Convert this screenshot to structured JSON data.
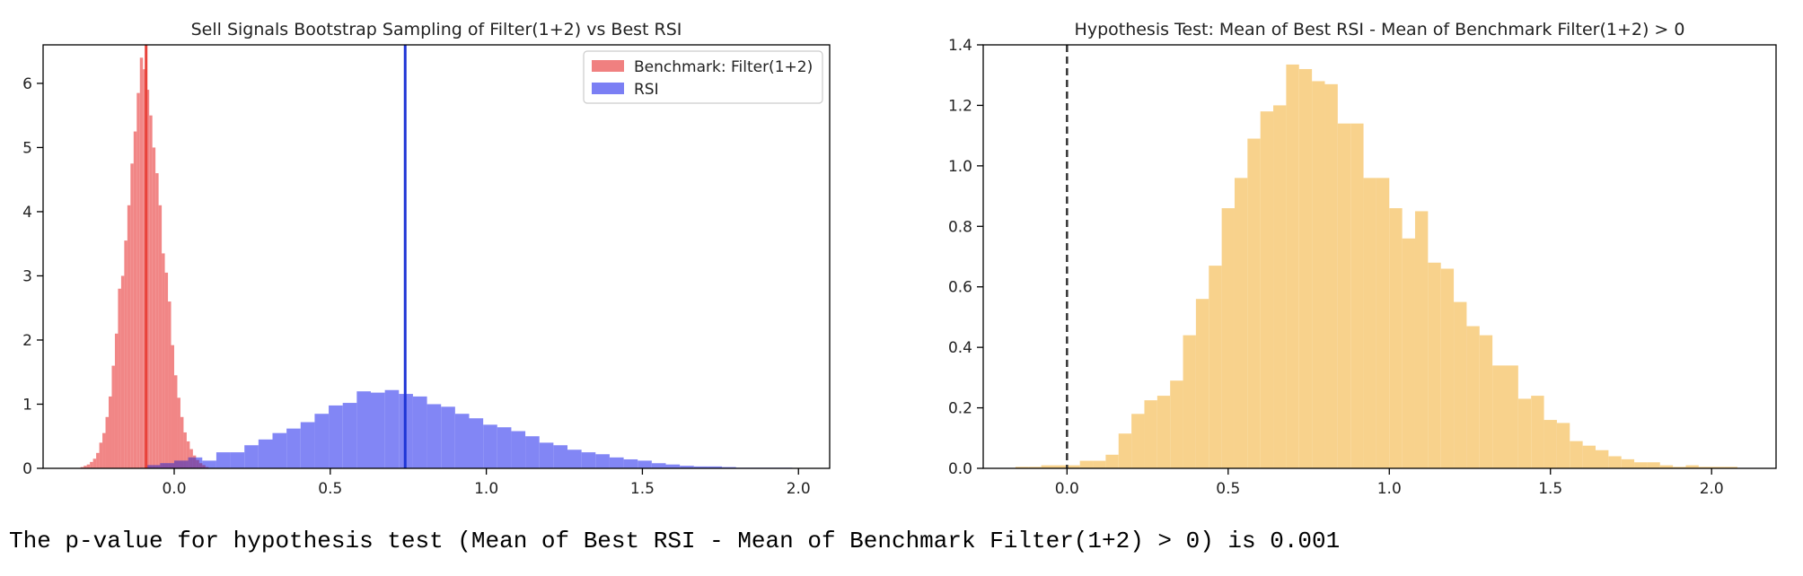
{
  "chart_data": [
    {
      "type": "histogram",
      "title": "Sell Signals Bootstrap Sampling of Filter(1+2) vs Best RSI",
      "xlabel": "",
      "ylabel": "",
      "xlim": [
        -0.42,
        2.1
      ],
      "ylim": [
        0,
        6.6
      ],
      "xticks": [
        0.0,
        0.5,
        1.0,
        1.5,
        2.0
      ],
      "xtick_labels": [
        "0.0",
        "0.5",
        "1.0",
        "1.5",
        "2.0"
      ],
      "yticks": [
        0,
        1,
        2,
        3,
        4,
        5,
        6
      ],
      "ytick_labels": [
        "0",
        "1",
        "2",
        "3",
        "4",
        "5",
        "6"
      ],
      "grid": false,
      "legend_position": "top-right",
      "series": [
        {
          "name": "Benchmark: Filter(1+2)",
          "color": "#f08080",
          "bins": [
            [
              -0.3,
              -0.29,
              0.02
            ],
            [
              -0.29,
              -0.28,
              0.04
            ],
            [
              -0.28,
              -0.27,
              0.06
            ],
            [
              -0.27,
              -0.26,
              0.1
            ],
            [
              -0.26,
              -0.25,
              0.15
            ],
            [
              -0.25,
              -0.24,
              0.24
            ],
            [
              -0.24,
              -0.23,
              0.4
            ],
            [
              -0.23,
              -0.22,
              0.55
            ],
            [
              -0.22,
              -0.21,
              0.8
            ],
            [
              -0.21,
              -0.2,
              1.12
            ],
            [
              -0.2,
              -0.19,
              1.6
            ],
            [
              -0.19,
              -0.18,
              2.1
            ],
            [
              -0.18,
              -0.17,
              2.8
            ],
            [
              -0.17,
              -0.16,
              3.0
            ],
            [
              -0.16,
              -0.15,
              3.55
            ],
            [
              -0.15,
              -0.14,
              4.1
            ],
            [
              -0.14,
              -0.13,
              4.75
            ],
            [
              -0.13,
              -0.12,
              5.25
            ],
            [
              -0.12,
              -0.11,
              5.85
            ],
            [
              -0.11,
              -0.1,
              6.4
            ],
            [
              -0.1,
              -0.09,
              6.22
            ],
            [
              -0.09,
              -0.08,
              5.9
            ],
            [
              -0.08,
              -0.07,
              5.5
            ],
            [
              -0.07,
              -0.06,
              5.0
            ],
            [
              -0.06,
              -0.05,
              4.6
            ],
            [
              -0.05,
              -0.04,
              4.1
            ],
            [
              -0.04,
              -0.03,
              3.35
            ],
            [
              -0.03,
              -0.02,
              3.05
            ],
            [
              -0.02,
              -0.01,
              2.6
            ],
            [
              -0.01,
              0.0,
              1.92
            ],
            [
              0.0,
              0.01,
              1.45
            ],
            [
              0.01,
              0.02,
              1.1
            ],
            [
              0.02,
              0.03,
              0.8
            ],
            [
              0.03,
              0.04,
              0.56
            ],
            [
              0.04,
              0.05,
              0.42
            ],
            [
              0.05,
              0.06,
              0.3
            ],
            [
              0.06,
              0.07,
              0.2
            ],
            [
              0.07,
              0.08,
              0.13
            ],
            [
              0.08,
              0.09,
              0.08
            ],
            [
              0.09,
              0.1,
              0.05
            ],
            [
              0.1,
              0.11,
              0.02
            ]
          ],
          "vline": {
            "x": -0.09,
            "color": "#e8423a"
          }
        },
        {
          "name": "RSI",
          "color": "#7b7ff4",
          "bins": [
            [
              -0.09,
              -0.045,
              0.05
            ],
            [
              -0.045,
              0.0,
              0.08
            ],
            [
              0.0,
              0.045,
              0.12
            ],
            [
              0.045,
              0.09,
              0.17
            ],
            [
              0.09,
              0.135,
              0.12
            ],
            [
              0.135,
              0.18,
              0.25
            ],
            [
              0.18,
              0.225,
              0.25
            ],
            [
              0.225,
              0.27,
              0.36
            ],
            [
              0.27,
              0.315,
              0.45
            ],
            [
              0.315,
              0.36,
              0.55
            ],
            [
              0.36,
              0.405,
              0.62
            ],
            [
              0.405,
              0.45,
              0.72
            ],
            [
              0.45,
              0.495,
              0.85
            ],
            [
              0.495,
              0.54,
              0.98
            ],
            [
              0.54,
              0.585,
              1.02
            ],
            [
              0.585,
              0.63,
              1.2
            ],
            [
              0.63,
              0.675,
              1.18
            ],
            [
              0.675,
              0.72,
              1.22
            ],
            [
              0.72,
              0.765,
              1.16
            ],
            [
              0.765,
              0.81,
              1.12
            ],
            [
              0.81,
              0.855,
              1.0
            ],
            [
              0.855,
              0.9,
              0.96
            ],
            [
              0.9,
              0.945,
              0.85
            ],
            [
              0.945,
              0.99,
              0.78
            ],
            [
              0.99,
              1.035,
              0.68
            ],
            [
              1.035,
              1.08,
              0.64
            ],
            [
              1.08,
              1.125,
              0.58
            ],
            [
              1.125,
              1.17,
              0.5
            ],
            [
              1.17,
              1.215,
              0.4
            ],
            [
              1.215,
              1.26,
              0.36
            ],
            [
              1.26,
              1.305,
              0.29
            ],
            [
              1.305,
              1.35,
              0.25
            ],
            [
              1.35,
              1.395,
              0.22
            ],
            [
              1.395,
              1.44,
              0.17
            ],
            [
              1.44,
              1.485,
              0.14
            ],
            [
              1.485,
              1.53,
              0.12
            ],
            [
              1.53,
              1.575,
              0.08
            ],
            [
              1.575,
              1.62,
              0.06
            ],
            [
              1.62,
              1.665,
              0.04
            ],
            [
              1.665,
              1.71,
              0.03
            ],
            [
              1.71,
              1.755,
              0.03
            ],
            [
              1.755,
              1.8,
              0.02
            ],
            [
              1.8,
              1.845,
              0.01
            ],
            [
              1.845,
              1.89,
              0.01
            ],
            [
              1.89,
              1.935,
              0.01
            ],
            [
              1.935,
              1.98,
              0.01
            ]
          ],
          "vline": {
            "x": 0.74,
            "color": "#1f35d6"
          }
        }
      ]
    },
    {
      "type": "histogram",
      "title": "Hypothesis Test: Mean of Best RSI - Mean of Benchmark Filter(1+2) > 0",
      "xlabel": "",
      "ylabel": "",
      "xlim": [
        -0.26,
        2.2
      ],
      "ylim": [
        0,
        1.4
      ],
      "xticks": [
        0.0,
        0.5,
        1.0,
        1.5,
        2.0
      ],
      "xtick_labels": [
        "0.0",
        "0.5",
        "1.0",
        "1.5",
        "2.0"
      ],
      "yticks": [
        0.0,
        0.2,
        0.4,
        0.6,
        0.8,
        1.0,
        1.2,
        1.4
      ],
      "ytick_labels": [
        "0.0",
        "0.2",
        "0.4",
        "0.6",
        "0.8",
        "1.0",
        "1.2",
        "1.4"
      ],
      "grid": false,
      "series": [
        {
          "color": "#f8d28c",
          "bins": [
            [
              -0.16,
              -0.12,
              0.005
            ],
            [
              -0.12,
              -0.08,
              0.005
            ],
            [
              -0.08,
              -0.04,
              0.01
            ],
            [
              -0.04,
              0.0,
              0.01
            ],
            [
              0.0,
              0.04,
              0.01
            ],
            [
              0.04,
              0.08,
              0.025
            ],
            [
              0.08,
              0.12,
              0.025
            ],
            [
              0.12,
              0.16,
              0.045
            ],
            [
              0.16,
              0.2,
              0.115
            ],
            [
              0.2,
              0.24,
              0.18
            ],
            [
              0.24,
              0.28,
              0.225
            ],
            [
              0.28,
              0.32,
              0.24
            ],
            [
              0.32,
              0.36,
              0.29
            ],
            [
              0.36,
              0.4,
              0.44
            ],
            [
              0.4,
              0.44,
              0.56
            ],
            [
              0.44,
              0.48,
              0.67
            ],
            [
              0.48,
              0.52,
              0.86
            ],
            [
              0.52,
              0.56,
              0.96
            ],
            [
              0.56,
              0.6,
              1.09
            ],
            [
              0.6,
              0.64,
              1.18
            ],
            [
              0.64,
              0.68,
              1.2
            ],
            [
              0.68,
              0.72,
              1.335
            ],
            [
              0.72,
              0.76,
              1.32
            ],
            [
              0.76,
              0.8,
              1.28
            ],
            [
              0.8,
              0.84,
              1.27
            ],
            [
              0.84,
              0.88,
              1.14
            ],
            [
              0.88,
              0.92,
              1.14
            ],
            [
              0.92,
              0.96,
              0.96
            ],
            [
              0.96,
              1.0,
              0.96
            ],
            [
              1.0,
              1.04,
              0.86
            ],
            [
              1.04,
              1.08,
              0.76
            ],
            [
              1.08,
              1.12,
              0.85
            ],
            [
              1.12,
              1.16,
              0.68
            ],
            [
              1.16,
              1.2,
              0.66
            ],
            [
              1.2,
              1.24,
              0.55
            ],
            [
              1.24,
              1.28,
              0.47
            ],
            [
              1.28,
              1.32,
              0.44
            ],
            [
              1.32,
              1.36,
              0.34
            ],
            [
              1.36,
              1.4,
              0.34
            ],
            [
              1.4,
              1.44,
              0.23
            ],
            [
              1.44,
              1.48,
              0.24
            ],
            [
              1.48,
              1.52,
              0.16
            ],
            [
              1.52,
              1.56,
              0.15
            ],
            [
              1.56,
              1.6,
              0.09
            ],
            [
              1.6,
              1.64,
              0.075
            ],
            [
              1.64,
              1.68,
              0.06
            ],
            [
              1.68,
              1.72,
              0.04
            ],
            [
              1.72,
              1.76,
              0.03
            ],
            [
              1.76,
              1.8,
              0.02
            ],
            [
              1.8,
              1.84,
              0.02
            ],
            [
              1.84,
              1.88,
              0.01
            ],
            [
              1.88,
              1.92,
              0.005
            ],
            [
              1.92,
              1.96,
              0.01
            ],
            [
              1.96,
              2.0,
              0.005
            ],
            [
              2.0,
              2.04,
              0.005
            ],
            [
              2.04,
              2.08,
              0.005
            ]
          ],
          "vline": {
            "x": 0.0,
            "color": "#333333",
            "style": "dashed"
          }
        }
      ]
    }
  ],
  "output_text": "The p-value for hypothesis test (Mean of Best RSI - Mean of Benchmark Filter(1+2) > 0) is 0.001"
}
